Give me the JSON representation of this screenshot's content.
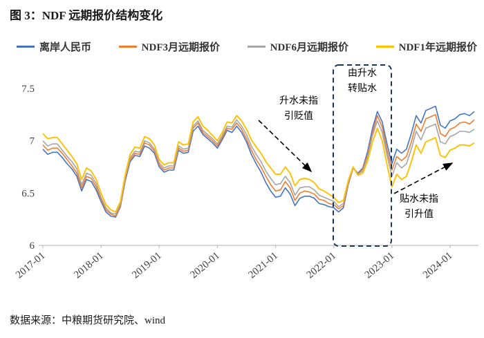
{
  "title": "图 3：NDF 远期报价结构变化",
  "source": "数据来源：中粮期货研究院、wind",
  "annotations": {
    "premium_no_depreciation": [
      "升水未指",
      "引贬值"
    ],
    "premium_to_discount": [
      "由升水",
      "转贴水"
    ],
    "discount_no_appreciation": [
      "贴水未指",
      "引升值"
    ]
  },
  "chart_data": {
    "type": "line",
    "x_start": "2017-01",
    "x_interval": "monthly",
    "n_points": 90,
    "x_tick_labels": [
      "2017-01",
      "2018-01",
      "2019-01",
      "2020-01",
      "2021-01",
      "2022-01",
      "2023-01",
      "2024-01"
    ],
    "x_tick_indices": [
      0,
      12,
      24,
      36,
      48,
      60,
      72,
      84
    ],
    "y_ticks": [
      6,
      6.5,
      7,
      7.5
    ],
    "ylim": [
      6,
      7.5
    ],
    "grid": false,
    "legend_position": "top",
    "axis_color": "#bfbfbf",
    "label_color": "#404040",
    "series": [
      {
        "name": "离岸人民币",
        "color": "#4472C4",
        "values": [
          6.92,
          6.87,
          6.89,
          6.89,
          6.84,
          6.78,
          6.73,
          6.66,
          6.52,
          6.63,
          6.61,
          6.53,
          6.42,
          6.32,
          6.28,
          6.27,
          6.37,
          6.62,
          6.8,
          6.86,
          6.85,
          6.95,
          6.93,
          6.88,
          6.75,
          6.7,
          6.72,
          6.72,
          6.91,
          6.88,
          6.89,
          7.09,
          7.14,
          7.06,
          7.02,
          6.98,
          6.93,
          7.01,
          7.1,
          7.08,
          7.14,
          7.08,
          6.99,
          6.87,
          6.78,
          6.7,
          6.6,
          6.52,
          6.46,
          6.47,
          6.55,
          6.49,
          6.38,
          6.45,
          6.47,
          6.47,
          6.45,
          6.4,
          6.39,
          6.37,
          6.36,
          6.32,
          6.36,
          6.58,
          6.74,
          6.69,
          6.74,
          6.9,
          7.12,
          7.28,
          7.18,
          6.97,
          6.78,
          6.92,
          6.88,
          6.92,
          7.07,
          7.24,
          7.17,
          7.29,
          7.31,
          7.33,
          7.15,
          7.12,
          7.19,
          7.21,
          7.25,
          7.26,
          7.24,
          7.28
        ]
      },
      {
        "name": "NDF3月远期报价",
        "color": "#ED7D31",
        "values": [
          6.96,
          6.91,
          6.93,
          6.93,
          6.88,
          6.82,
          6.76,
          6.69,
          6.55,
          6.66,
          6.64,
          6.56,
          6.44,
          6.34,
          6.3,
          6.28,
          6.38,
          6.64,
          6.82,
          6.88,
          6.87,
          6.98,
          6.96,
          6.9,
          6.77,
          6.72,
          6.74,
          6.74,
          6.93,
          6.9,
          6.91,
          7.12,
          7.17,
          7.08,
          7.04,
          7.0,
          6.95,
          7.03,
          7.12,
          7.11,
          7.17,
          7.11,
          7.02,
          6.91,
          6.82,
          6.75,
          6.66,
          6.58,
          6.52,
          6.53,
          6.61,
          6.55,
          6.43,
          6.5,
          6.52,
          6.51,
          6.49,
          6.44,
          6.43,
          6.4,
          6.39,
          6.35,
          6.38,
          6.59,
          6.74,
          6.68,
          6.73,
          6.87,
          7.08,
          7.24,
          7.13,
          6.91,
          6.72,
          6.85,
          6.81,
          6.85,
          6.99,
          7.16,
          7.09,
          7.21,
          7.23,
          7.25,
          7.07,
          7.04,
          7.11,
          7.13,
          7.17,
          7.18,
          7.16,
          7.2
        ]
      },
      {
        "name": "NDF6月远期报价",
        "color": "#A5A5A5",
        "values": [
          7.0,
          6.95,
          6.97,
          6.97,
          6.91,
          6.85,
          6.8,
          6.73,
          6.58,
          6.69,
          6.67,
          6.59,
          6.46,
          6.36,
          6.31,
          6.3,
          6.4,
          6.65,
          6.84,
          6.9,
          6.89,
          7.0,
          6.98,
          6.92,
          6.79,
          6.74,
          6.76,
          6.76,
          6.95,
          6.92,
          6.93,
          7.14,
          7.19,
          7.1,
          7.06,
          7.02,
          6.97,
          7.05,
          7.14,
          7.13,
          7.2,
          7.14,
          7.06,
          6.95,
          6.87,
          6.8,
          6.71,
          6.64,
          6.58,
          6.59,
          6.66,
          6.6,
          6.48,
          6.55,
          6.56,
          6.56,
          6.53,
          6.48,
          6.46,
          6.44,
          6.42,
          6.37,
          6.4,
          6.6,
          6.75,
          6.68,
          6.71,
          6.85,
          7.05,
          7.19,
          7.08,
          6.86,
          6.66,
          6.79,
          6.74,
          6.78,
          6.92,
          7.09,
          7.01,
          7.12,
          7.14,
          7.16,
          6.99,
          6.97,
          7.04,
          7.06,
          7.09,
          7.09,
          7.08,
          7.11
        ]
      },
      {
        "name": "NDF1年远期报价",
        "color": "#FFC000",
        "values": [
          7.07,
          7.02,
          7.03,
          7.03,
          6.97,
          6.91,
          6.85,
          6.78,
          6.63,
          6.74,
          6.71,
          6.63,
          6.5,
          6.39,
          6.34,
          6.32,
          6.42,
          6.68,
          6.87,
          6.94,
          6.93,
          7.04,
          7.02,
          6.96,
          6.82,
          6.77,
          6.79,
          6.79,
          6.99,
          6.96,
          6.97,
          7.18,
          7.23,
          7.14,
          7.1,
          7.05,
          7.0,
          7.08,
          7.18,
          7.17,
          7.24,
          7.19,
          7.11,
          7.01,
          6.94,
          6.88,
          6.8,
          6.74,
          6.68,
          6.68,
          6.75,
          6.69,
          6.57,
          6.63,
          6.64,
          6.63,
          6.6,
          6.54,
          6.52,
          6.49,
          6.46,
          6.41,
          6.43,
          6.62,
          6.75,
          6.67,
          6.69,
          6.81,
          6.99,
          7.12,
          7.0,
          6.77,
          6.56,
          6.68,
          6.63,
          6.66,
          6.8,
          6.96,
          6.88,
          6.99,
          7.01,
          7.03,
          6.86,
          6.84,
          6.91,
          6.93,
          6.96,
          6.96,
          6.95,
          6.98
        ]
      }
    ]
  }
}
